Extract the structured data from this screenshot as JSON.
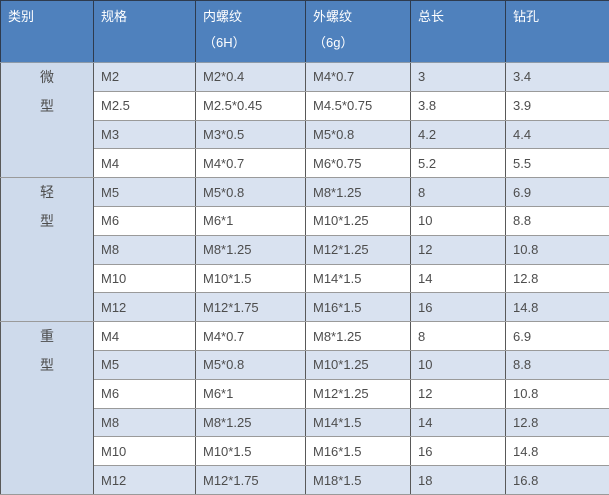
{
  "chart_data": {
    "type": "table",
    "title": "",
    "columns": [
      "类别",
      "规格",
      "内螺纹（6H）",
      "外螺纹（6g）",
      "总长",
      "钻孔"
    ],
    "rows": [
      [
        "微型",
        "M2",
        "M2*0.4",
        "M4*0.7",
        "3",
        "3.4"
      ],
      [
        "微型",
        "M2.5",
        "M2.5*0.45",
        "M4.5*0.75",
        "3.8",
        "3.9"
      ],
      [
        "微型",
        "M3",
        "M3*0.5",
        "M5*0.8",
        "4.2",
        "4.4"
      ],
      [
        "微型",
        "M4",
        "M4*0.7",
        "M6*0.75",
        "5.2",
        "5.5"
      ],
      [
        "轻型",
        "M5",
        "M5*0.8",
        "M8*1.25",
        "8",
        "6.9"
      ],
      [
        "轻型",
        "M6",
        "M6*1",
        "M10*1.25",
        "10",
        "8.8"
      ],
      [
        "轻型",
        "M8",
        "M8*1.25",
        "M12*1.25",
        "12",
        "10.8"
      ],
      [
        "轻型",
        "M10",
        "M10*1.5",
        "M14*1.5",
        "14",
        "12.8"
      ],
      [
        "轻型",
        "M12",
        "M12*1.75",
        "M16*1.5",
        "16",
        "14.8"
      ],
      [
        "重型",
        "M4",
        "M4*0.7",
        "M8*1.25",
        "8",
        "6.9"
      ],
      [
        "重型",
        "M5",
        "M5*0.8",
        "M10*1.25",
        "10",
        "8.8"
      ],
      [
        "重型",
        "M6",
        "M6*1",
        "M12*1.25",
        "12",
        "10.8"
      ],
      [
        "重型",
        "M8",
        "M8*1.25",
        "M14*1.5",
        "14",
        "12.8"
      ],
      [
        "重型",
        "M10",
        "M10*1.5",
        "M16*1.5",
        "16",
        "14.8"
      ],
      [
        "重型",
        "M12",
        "M12*1.75",
        "M18*1.5",
        "18",
        "16.8"
      ]
    ]
  },
  "table": {
    "columns": [
      {
        "line1": "类别",
        "line2": ""
      },
      {
        "line1": "规格",
        "line2": ""
      },
      {
        "line1": "内螺纹",
        "line2": "（6H）"
      },
      {
        "line1": "外螺纹",
        "line2": "（6g）"
      },
      {
        "line1": "总长",
        "line2": ""
      },
      {
        "line1": "钻孔",
        "line2": ""
      }
    ],
    "groups": [
      {
        "category": "微型",
        "category_chars": [
          "微",
          "型"
        ],
        "rows": [
          [
            "M2",
            "M2*0.4",
            "M4*0.7",
            "3",
            "3.4"
          ],
          [
            "M2.5",
            "M2.5*0.45",
            "M4.5*0.75",
            "3.8",
            "3.9"
          ],
          [
            "M3",
            "M3*0.5",
            "M5*0.8",
            "4.2",
            "4.4"
          ],
          [
            "M4",
            "M4*0.7",
            "M6*0.75",
            "5.2",
            "5.5"
          ]
        ]
      },
      {
        "category": "轻型",
        "category_chars": [
          "轻",
          "型"
        ],
        "rows": [
          [
            "M5",
            "M5*0.8",
            "M8*1.25",
            "8",
            "6.9"
          ],
          [
            "M6",
            "M6*1",
            "M10*1.25",
            "10",
            "8.8"
          ],
          [
            "M8",
            "M8*1.25",
            "M12*1.25",
            "12",
            "10.8"
          ],
          [
            "M10",
            "M10*1.5",
            "M14*1.5",
            "14",
            "12.8"
          ],
          [
            "M12",
            "M12*1.75",
            "M16*1.5",
            "16",
            "14.8"
          ]
        ]
      },
      {
        "category": "重型",
        "category_chars": [
          "重",
          "型"
        ],
        "rows": [
          [
            "M4",
            "M4*0.7",
            "M8*1.25",
            "8",
            "6.9"
          ],
          [
            "M5",
            "M5*0.8",
            "M10*1.25",
            "10",
            "8.8"
          ],
          [
            "M6",
            "M6*1",
            "M12*1.25",
            "12",
            "10.8"
          ],
          [
            "M8",
            "M8*1.25",
            "M14*1.5",
            "14",
            "12.8"
          ],
          [
            "M10",
            "M10*1.5",
            "M16*1.5",
            "16",
            "14.8"
          ],
          [
            "M12",
            "M12*1.75",
            "M18*1.5",
            "18",
            "16.8"
          ]
        ]
      }
    ],
    "colors": {
      "header_bg": "#4F81BD",
      "header_text": "#FFFFFF",
      "row_alt_bg": "#D9E2F0",
      "row_bg": "#FFFFFF",
      "category_bg": "#CEDAEB",
      "cell_text": "#4D4D4D",
      "border_vertical": "#595959",
      "border_horizontal": "#9A9A9A",
      "outer_border": "#2B2B2B"
    }
  }
}
